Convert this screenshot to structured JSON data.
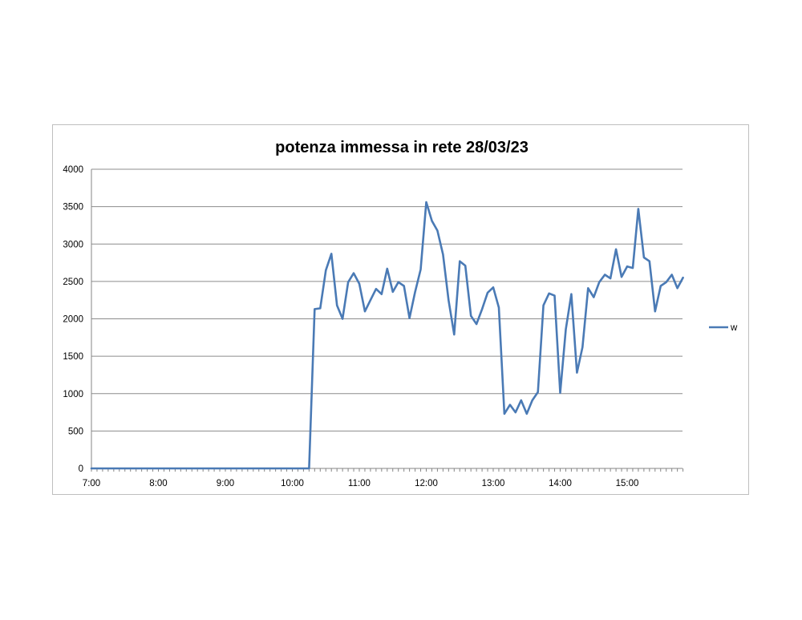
{
  "chart_data": {
    "type": "line",
    "title": "potenza immessa in rete 28/03/23",
    "xlabel": "",
    "ylabel": "",
    "ylim": [
      0,
      4000
    ],
    "yticks": [
      "0",
      "500",
      "1000",
      "1500",
      "2000",
      "2500",
      "3000",
      "3500",
      "4000"
    ],
    "xlim": [
      "7:00",
      "15:50"
    ],
    "xticks": [
      "7:00",
      "8:00",
      "9:00",
      "10:00",
      "11:00",
      "12:00",
      "13:00",
      "14:00",
      "15:00"
    ],
    "grid": "horizontal",
    "legend_position": "right",
    "series": [
      {
        "name": "w",
        "color": "#4a7ab5",
        "points": [
          [
            "7:00",
            0
          ],
          [
            "7:30",
            0
          ],
          [
            "8:00",
            0
          ],
          [
            "8:30",
            0
          ],
          [
            "9:00",
            0
          ],
          [
            "9:30",
            0
          ],
          [
            "10:00",
            0
          ],
          [
            "10:15",
            0
          ],
          [
            "10:20",
            2130
          ],
          [
            "10:25",
            2140
          ],
          [
            "10:30",
            2650
          ],
          [
            "10:35",
            2870
          ],
          [
            "10:40",
            2180
          ],
          [
            "10:45",
            2000
          ],
          [
            "10:50",
            2490
          ],
          [
            "10:55",
            2610
          ],
          [
            "11:00",
            2470
          ],
          [
            "11:05",
            2100
          ],
          [
            "11:10",
            2250
          ],
          [
            "11:15",
            2400
          ],
          [
            "11:20",
            2330
          ],
          [
            "11:25",
            2670
          ],
          [
            "11:30",
            2360
          ],
          [
            "11:35",
            2490
          ],
          [
            "11:40",
            2440
          ],
          [
            "11:45",
            2010
          ],
          [
            "11:50",
            2360
          ],
          [
            "11:55",
            2660
          ],
          [
            "12:00",
            3560
          ],
          [
            "12:05",
            3310
          ],
          [
            "12:10",
            3180
          ],
          [
            "12:15",
            2860
          ],
          [
            "12:20",
            2250
          ],
          [
            "12:25",
            1790
          ],
          [
            "12:30",
            2770
          ],
          [
            "12:35",
            2710
          ],
          [
            "12:40",
            2040
          ],
          [
            "12:45",
            1930
          ],
          [
            "12:50",
            2130
          ],
          [
            "12:55",
            2350
          ],
          [
            "13:00",
            2420
          ],
          [
            "13:05",
            2150
          ],
          [
            "13:10",
            730
          ],
          [
            "13:15",
            850
          ],
          [
            "13:20",
            750
          ],
          [
            "13:25",
            910
          ],
          [
            "13:30",
            730
          ],
          [
            "13:35",
            910
          ],
          [
            "13:40",
            1020
          ],
          [
            "13:45",
            2180
          ],
          [
            "13:50",
            2340
          ],
          [
            "13:55",
            2310
          ],
          [
            "14:00",
            1010
          ],
          [
            "14:05",
            1860
          ],
          [
            "14:10",
            2330
          ],
          [
            "14:15",
            1280
          ],
          [
            "14:20",
            1620
          ],
          [
            "14:25",
            2410
          ],
          [
            "14:30",
            2290
          ],
          [
            "14:35",
            2490
          ],
          [
            "14:40",
            2590
          ],
          [
            "14:45",
            2540
          ],
          [
            "14:50",
            2930
          ],
          [
            "14:55",
            2560
          ],
          [
            "15:00",
            2700
          ],
          [
            "15:05",
            2680
          ],
          [
            "15:10",
            3470
          ],
          [
            "15:15",
            2820
          ],
          [
            "15:20",
            2770
          ],
          [
            "15:25",
            2100
          ],
          [
            "15:30",
            2440
          ],
          [
            "15:35",
            2490
          ],
          [
            "15:40",
            2590
          ],
          [
            "15:45",
            2410
          ],
          [
            "15:50",
            2550
          ]
        ]
      }
    ]
  }
}
